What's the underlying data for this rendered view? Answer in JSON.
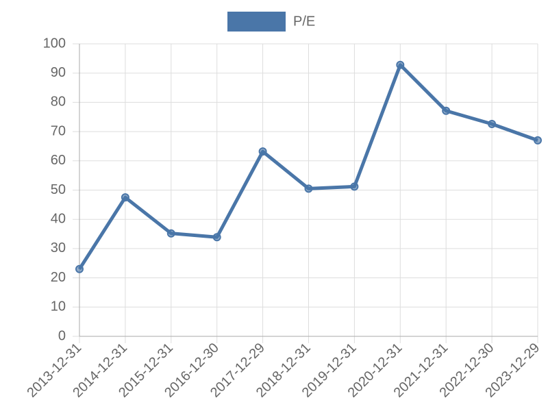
{
  "chart_data": {
    "type": "line",
    "categories": [
      "2013-12-31",
      "2014-12-31",
      "2015-12-31",
      "2016-12-30",
      "2017-12-29",
      "2018-12-31",
      "2019-12-31",
      "2020-12-31",
      "2021-12-31",
      "2022-12-30",
      "2023-12-29"
    ],
    "series": [
      {
        "name": "P/E",
        "color": "#4a76a8",
        "values": [
          23,
          47.5,
          35.2,
          33.9,
          63.2,
          50.5,
          51.2,
          92.8,
          77.1,
          72.6,
          67.0
        ]
      }
    ],
    "ylim": [
      0,
      100
    ],
    "yticks": [
      0,
      10,
      20,
      30,
      40,
      50,
      60,
      70,
      80,
      90,
      100
    ],
    "grid": true,
    "legend": "top"
  }
}
